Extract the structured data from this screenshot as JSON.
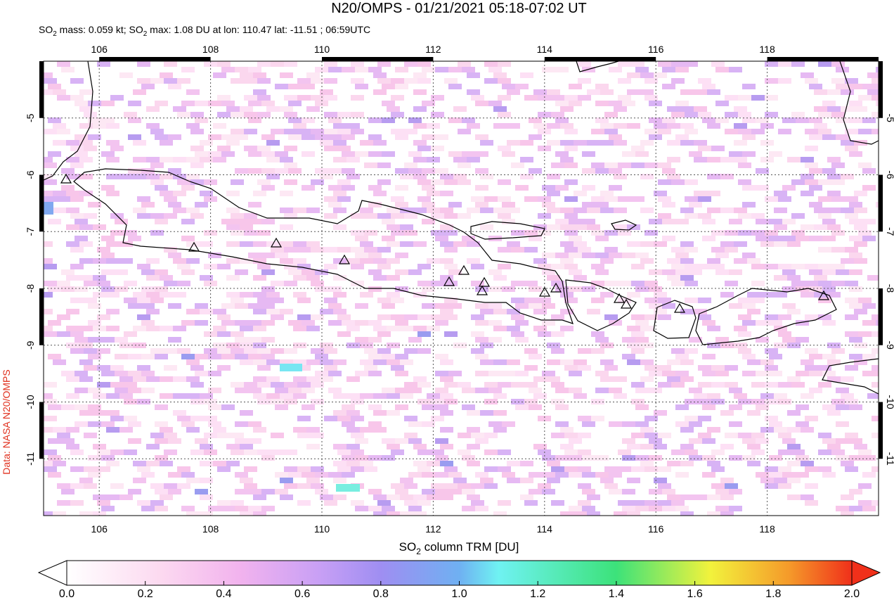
{
  "header": {
    "title": "N20/OMPS - 01/21/2021 05:18-07:02 UT",
    "subtitle": [
      "SO",
      "2",
      " mass: 0.059 kt; SO",
      "2",
      " max: 1.08 DU at lon: 110.47 lat: -11.51 ; 06:59UTC"
    ]
  },
  "map": {
    "xlim": [
      105,
      120
    ],
    "ylim": [
      -12,
      -4
    ],
    "xticks": [
      106,
      108,
      110,
      112,
      114,
      116,
      118
    ],
    "yticks": [
      -5,
      -6,
      -7,
      -8,
      -9,
      -10,
      -11
    ],
    "credit": "Data: NASA N20/OMPS"
  },
  "colorbar": {
    "label": [
      "SO",
      "2",
      " column TRM [DU]"
    ],
    "lim": [
      0,
      2
    ],
    "ticks": [
      {
        "value": 0,
        "label": "0.0"
      },
      {
        "value": 0.2,
        "label": "0.2"
      },
      {
        "value": 0.4,
        "label": "0.4"
      },
      {
        "value": 0.6,
        "label": "0.6"
      },
      {
        "value": 0.8,
        "label": "0.8"
      },
      {
        "value": 1,
        "label": "1.0"
      },
      {
        "value": 1.2,
        "label": "1.2"
      },
      {
        "value": 1.4,
        "label": "1.4"
      },
      {
        "value": 1.6,
        "label": "1.6"
      },
      {
        "value": 1.8,
        "label": "1.8"
      },
      {
        "value": 2,
        "label": "2.0"
      }
    ]
  }
}
